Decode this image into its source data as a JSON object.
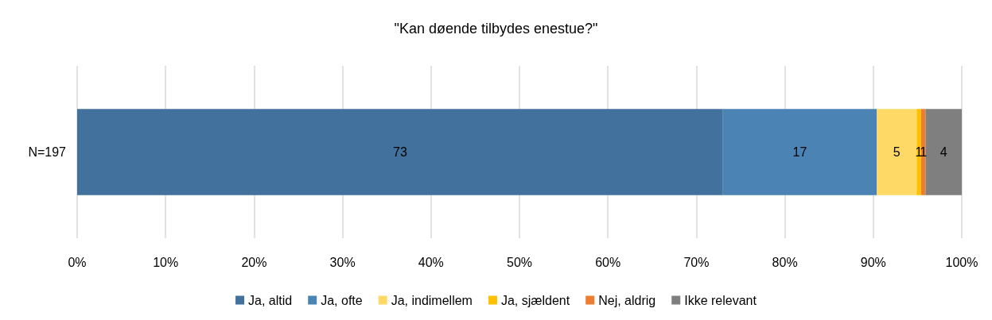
{
  "chart_data": {
    "type": "bar",
    "title": "\"Kan døende tilbydes enestue?\"",
    "orientation": "horizontal",
    "stacked": true,
    "categories": [
      "N=197"
    ],
    "series": [
      {
        "name": "Ja, altid",
        "color": "#41719c",
        "values": [
          73.0
        ],
        "value_labels": [
          "73"
        ]
      },
      {
        "name": "Ja, ofte",
        "color": "#4a83b4",
        "values": [
          17.4
        ],
        "value_labels": [
          "17"
        ]
      },
      {
        "name": "Ja, indimellem",
        "color": "#ffd966",
        "values": [
          4.5
        ],
        "value_labels": [
          "5"
        ]
      },
      {
        "name": "Ja, sjældent",
        "color": "#ffc000",
        "values": [
          0.5
        ],
        "value_labels": [
          "1"
        ]
      },
      {
        "name": "Nej, aldrig",
        "color": "#ed7d31",
        "values": [
          0.5
        ],
        "value_labels": [
          "1"
        ]
      },
      {
        "name": "Ikke relevant",
        "color": "#7f7f7f",
        "values": [
          4.1
        ],
        "value_labels": [
          "4"
        ]
      }
    ],
    "xlim": [
      0,
      100
    ],
    "xticks": [
      {
        "value": 0,
        "label": "0%"
      },
      {
        "value": 10,
        "label": "10%"
      },
      {
        "value": 20,
        "label": "20%"
      },
      {
        "value": 30,
        "label": "30%"
      },
      {
        "value": 40,
        "label": "40%"
      },
      {
        "value": 50,
        "label": "50%"
      },
      {
        "value": 60,
        "label": "60%"
      },
      {
        "value": 70,
        "label": "70%"
      },
      {
        "value": 80,
        "label": "80%"
      },
      {
        "value": 90,
        "label": "90%"
      },
      {
        "value": 100,
        "label": "100%"
      }
    ],
    "grid": "x",
    "legend": "bottom"
  }
}
